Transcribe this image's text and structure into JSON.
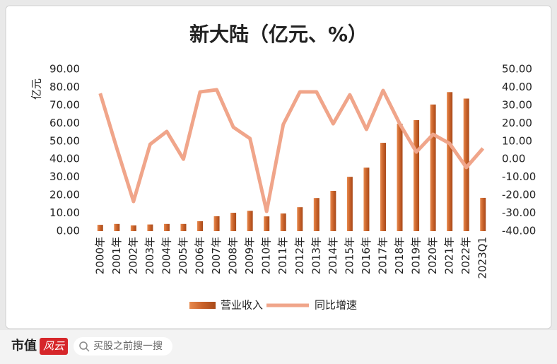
{
  "chart_data": {
    "type": "bar_line",
    "title": "新大陆（亿元、%）",
    "y_label": "亿元",
    "categories": [
      "2000年",
      "2001年",
      "2002年",
      "2003年",
      "2004年",
      "2005年",
      "2006年",
      "2007年",
      "2008年",
      "2009年",
      "2010年",
      "2011年",
      "2012年",
      "2013年",
      "2014年",
      "2015年",
      "2016年",
      "2017年",
      "2018年",
      "2019年",
      "2020年",
      "2021年",
      "2022年",
      "2023Q1"
    ],
    "series": [
      {
        "name": "营业收入",
        "type": "bar",
        "color": "#c9622a",
        "axis": "y",
        "values": [
          3.5,
          4.0,
          3.2,
          3.7,
          4.0,
          4.0,
          5.5,
          8.3,
          10.2,
          11.3,
          8.2,
          9.8,
          13.3,
          18.4,
          22.4,
          30.2,
          35.3,
          49.1,
          59.7,
          61.7,
          70.4,
          77.3,
          73.7,
          18.5
        ]
      },
      {
        "name": "同比增速",
        "type": "line",
        "color": "#f0a58a",
        "axis": "y2",
        "values": [
          36.6,
          6,
          -23.5,
          8.3,
          15.4,
          0,
          37.4,
          38.6,
          17.8,
          11.5,
          -29,
          19.3,
          37.4,
          37.4,
          19.7,
          35.8,
          16.6,
          38.2,
          19.7,
          4,
          13.8,
          8.7,
          -4.6,
          6
        ]
      }
    ],
    "ylim": [
      0,
      90
    ],
    "yticks": [
      {
        "value": 0,
        "label": "0.00"
      },
      {
        "value": 10,
        "label": "10.00"
      },
      {
        "value": 20,
        "label": "20.00"
      },
      {
        "value": 30,
        "label": "30.00"
      },
      {
        "value": 40,
        "label": "40.00"
      },
      {
        "value": 50,
        "label": "50.00"
      },
      {
        "value": 60,
        "label": "60.00"
      },
      {
        "value": 70,
        "label": "70.00"
      },
      {
        "value": 80,
        "label": "80.00"
      },
      {
        "value": 90,
        "label": "90.00"
      }
    ],
    "y2lim": [
      -40,
      50
    ],
    "y2ticks": [
      {
        "value": -40,
        "label": "-40.00"
      },
      {
        "value": -30,
        "label": "-30.00"
      },
      {
        "value": -20,
        "label": "-20.00"
      },
      {
        "value": -10,
        "label": "-10.00"
      },
      {
        "value": 0,
        "label": "0.00"
      },
      {
        "value": 10,
        "label": "10.00"
      },
      {
        "value": 20,
        "label": "20.00"
      },
      {
        "value": 30,
        "label": "30.00"
      },
      {
        "value": 40,
        "label": "40.00"
      },
      {
        "value": 50,
        "label": "50.00"
      }
    ],
    "grid": false,
    "legend": "bottom"
  },
  "footer": {
    "brand": "市值",
    "logo": "风云",
    "search": "买股之前搜一搜"
  }
}
